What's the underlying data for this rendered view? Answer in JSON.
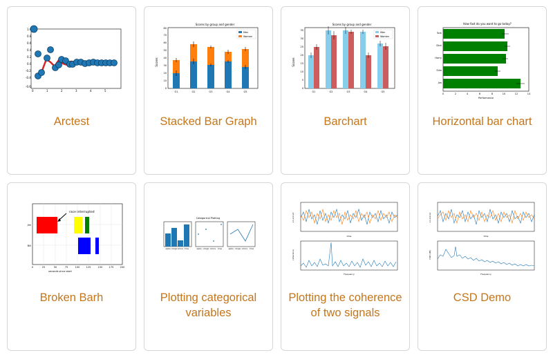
{
  "colors": {
    "caption": "#c4761b",
    "card_border": "#d6d6d6",
    "mpl_blue": "#1f77b4",
    "mpl_orange": "#ff7f0e",
    "skyblue": "#87ceeb",
    "indianred": "#cd5c5c",
    "green": "#008000"
  },
  "cards": [
    {
      "title": "Arctest"
    },
    {
      "title": "Stacked Bar Graph",
      "thumb": {
        "title": "Scores by group and gender",
        "ylabel": "Scores",
        "legend": [
          "Men",
          "Women"
        ],
        "categories": [
          "G1",
          "G2",
          "G3",
          "G4",
          "G5"
        ],
        "yticks": [
          "0",
          "10",
          "20",
          "30",
          "40",
          "50",
          "60",
          "70",
          "80"
        ]
      }
    },
    {
      "title": "Barchart",
      "thumb": {
        "title": "Scores by group and gender",
        "ylabel": "Scores",
        "legend": [
          "Men",
          "Women"
        ],
        "categories": [
          "G1",
          "G2",
          "G3",
          "G4",
          "G5"
        ],
        "yticks": [
          "0",
          "5",
          "10",
          "15",
          "20",
          "25",
          "30",
          "35"
        ]
      }
    },
    {
      "title": "Horizontal bar chart",
      "thumb": {
        "title": "How fast do you want to go today?",
        "xlabel": "Performance",
        "names": [
          "Tom",
          "Dick",
          "Harry",
          "Slim",
          "Jim"
        ],
        "xticks": [
          "0",
          "2",
          "4",
          "6",
          "8",
          "10",
          "12",
          "14"
        ]
      }
    },
    {
      "title": "Broken Barh",
      "thumb": {
        "annotation": "race interrupted",
        "xlabel": "seconds since start",
        "ylabels": [
          "Jim",
          "Bill"
        ],
        "xticks": [
          "0",
          "25",
          "50",
          "75",
          "100",
          "125",
          "150",
          "175",
          "200"
        ]
      }
    },
    {
      "title": "Plotting categorical variables",
      "thumb": {
        "title": "Categorical Plotting",
        "categories": [
          "apples",
          "oranges",
          "lemons",
          "limes"
        ]
      }
    },
    {
      "title": "Plotting the coherence of two signals",
      "thumb": {
        "xlabel_top": "time",
        "ylabel_top": "s1 and s2",
        "xlabel_bottom": "Frequency",
        "ylabel_bottom": "coherence"
      }
    },
    {
      "title": "CSD Demo",
      "thumb": {
        "xlabel_top": "time",
        "ylabel_top": "s1 and s2",
        "xlabel_bottom": "Frequency",
        "ylabel_bottom": "CSD (dB)"
      }
    }
  ]
}
